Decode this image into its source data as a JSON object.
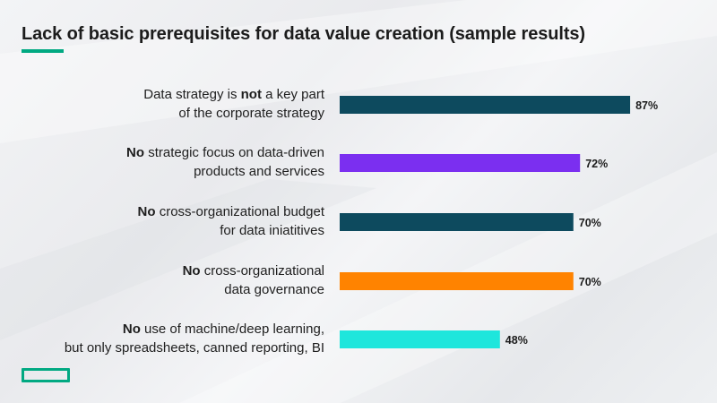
{
  "chart_data": {
    "type": "bar",
    "orientation": "horizontal",
    "title": "Lack of basic prerequisites for data value creation (sample results)",
    "grid": false,
    "legend": "none",
    "xlim": [
      0,
      100
    ],
    "categories": [
      {
        "bold": "",
        "line1_pre": "Data strategy is ",
        "line1_bold": "not",
        "line1_post": " a key part",
        "line2": "of the corporate strategy"
      },
      {
        "bold": "No",
        "line1_pre": "",
        "line1_bold": "",
        "line1_post": " strategic focus on data-driven",
        "line2": "products and services"
      },
      {
        "bold": "No",
        "line1_pre": "",
        "line1_bold": "",
        "line1_post": " cross-organizational budget",
        "line2": "for data iniatitives"
      },
      {
        "bold": "No",
        "line1_pre": "",
        "line1_bold": "",
        "line1_post": " cross-organizational",
        "line2": "data governance"
      },
      {
        "bold": "No",
        "line1_pre": "",
        "line1_bold": "",
        "line1_post": " use of machine/deep learning,",
        "line2": "but only spreadsheets, canned reporting, BI"
      }
    ],
    "values": [
      87,
      72,
      70,
      70,
      48
    ],
    "value_labels": [
      "87%",
      "72%",
      "70%",
      "70%",
      "48%"
    ],
    "colors": [
      "#0d4a5e",
      "#7b2ff0",
      "#0d4a5e",
      "#ff8300",
      "#1ee6dc"
    ]
  }
}
